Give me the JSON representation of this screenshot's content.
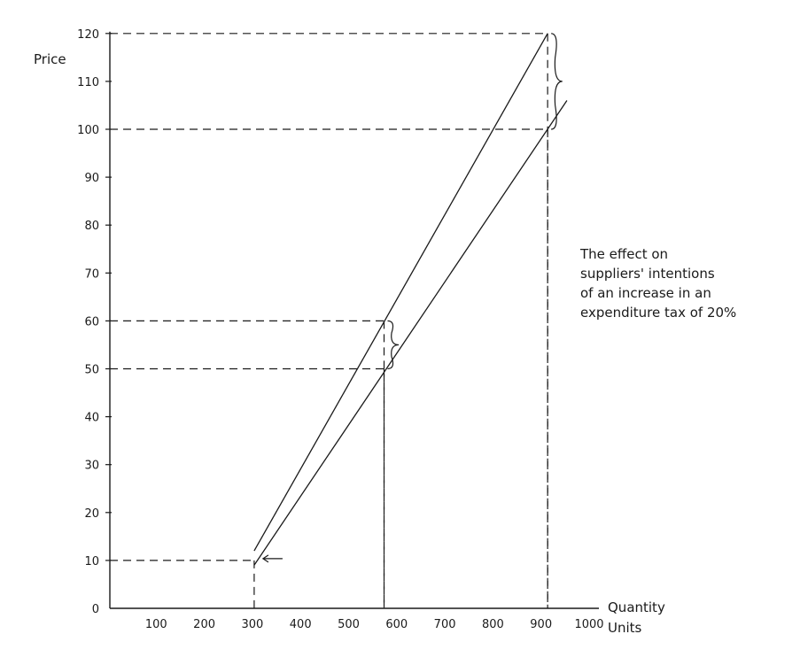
{
  "chart_data": {
    "type": "line",
    "ylabel": "Price",
    "xlabel_lines": [
      "Quantity",
      "Units"
    ],
    "xlim": [
      0,
      1000
    ],
    "ylim": [
      0,
      120
    ],
    "x_ticks": [
      "100",
      "200",
      "300",
      "400",
      "500",
      "600",
      "700",
      "800",
      "900",
      "1000"
    ],
    "y_ticks": [
      "0",
      "10",
      "20",
      "30",
      "40",
      "50",
      "60",
      "70",
      "80",
      "90",
      "100",
      "110",
      "120"
    ],
    "series": [
      {
        "points": [
          [
            300,
            12
          ],
          [
            910,
            120
          ]
        ]
      },
      {
        "points": [
          [
            300,
            9
          ],
          [
            950,
            106
          ]
        ]
      }
    ],
    "reference_points": [
      {
        "x": 300,
        "y": 10
      },
      {
        "x": 570,
        "y": 60
      },
      {
        "x": 570,
        "y": 50
      },
      {
        "x": 910,
        "y": 120
      },
      {
        "x": 910,
        "y": 100
      }
    ],
    "braces": [
      {
        "x": 570,
        "y_from": 50,
        "y_to": 60
      },
      {
        "x": 910,
        "y_from": 100,
        "y_to": 120
      }
    ],
    "arrow": {
      "x": 300,
      "y": 10,
      "direction": "left"
    },
    "annotation_lines": [
      "The effect on",
      "suppliers' intentions",
      "of an increase in an",
      "expenditure tax of 20%"
    ],
    "grid": false,
    "colors": {
      "line": "#1a1a1a",
      "background": "#ffffff"
    }
  }
}
